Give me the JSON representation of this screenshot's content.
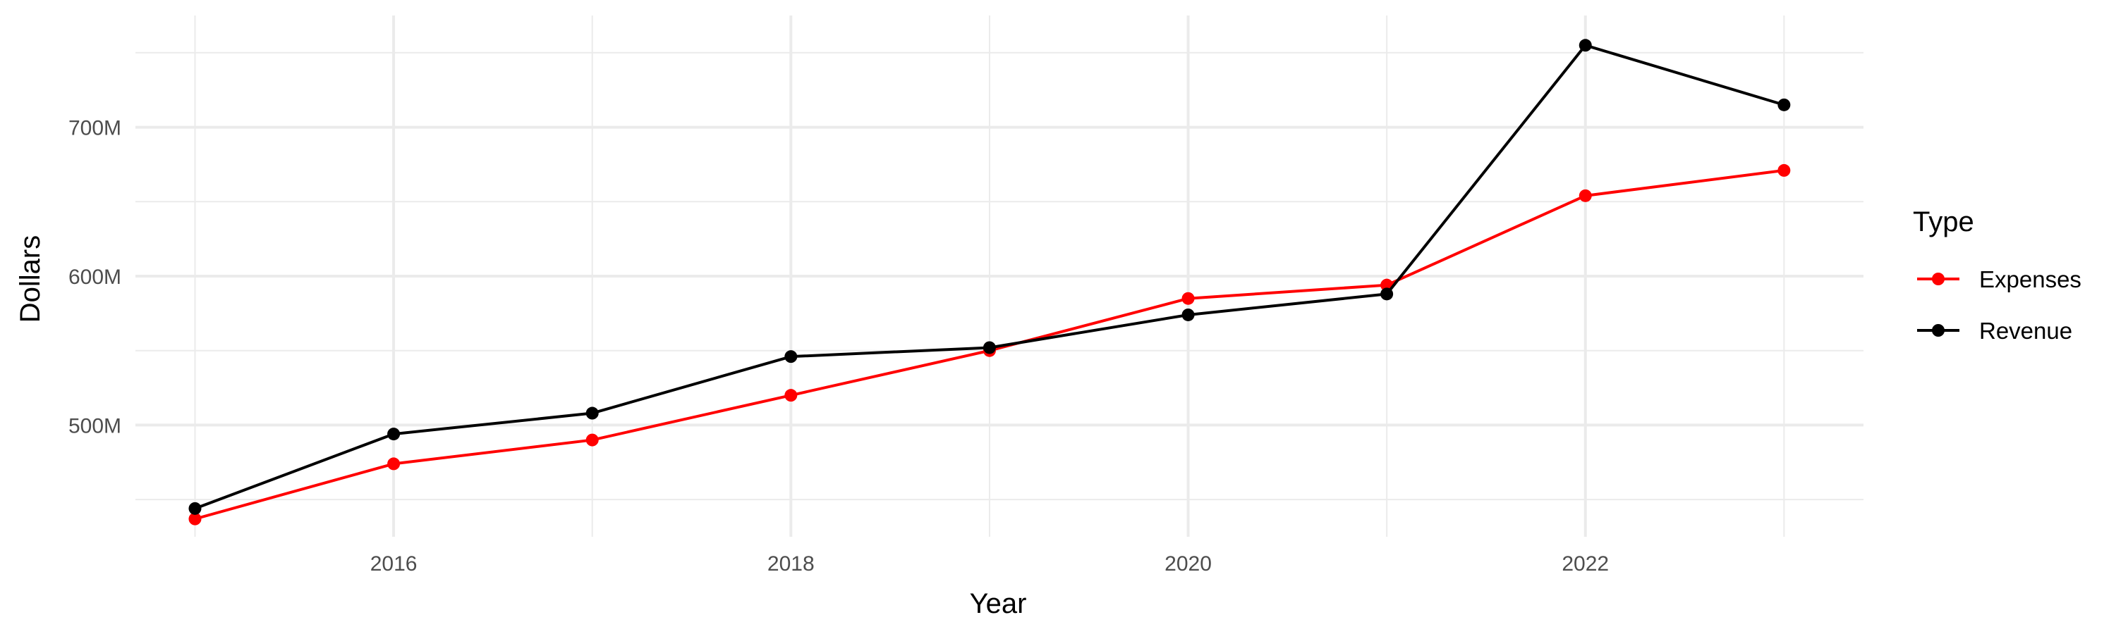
{
  "chart_data": {
    "type": "line",
    "title": "",
    "xlabel": "Year",
    "ylabel": "Dollars",
    "x": [
      2015,
      2016,
      2017,
      2018,
      2019,
      2020,
      2021,
      2022,
      2023
    ],
    "xlim": [
      2014.7,
      2023.4
    ],
    "ylim": [
      425,
      775
    ],
    "x_ticks": [
      2016,
      2018,
      2020,
      2022
    ],
    "x_tick_labels": [
      "2016",
      "2018",
      "2020",
      "2022"
    ],
    "y_ticks": [
      500,
      600,
      700
    ],
    "y_tick_labels": [
      "500M",
      "600M",
      "700M"
    ],
    "y_unit": "millions of dollars",
    "grid": true,
    "legend": {
      "title": "Type",
      "placement": "right"
    },
    "series": [
      {
        "name": "Expenses",
        "color": "#ff0000",
        "values": [
          437,
          474,
          490,
          520,
          550,
          585,
          594,
          654,
          671
        ]
      },
      {
        "name": "Revenue",
        "color": "#000000",
        "values": [
          444,
          494,
          508,
          546,
          552,
          574,
          588,
          755,
          715
        ]
      }
    ]
  }
}
